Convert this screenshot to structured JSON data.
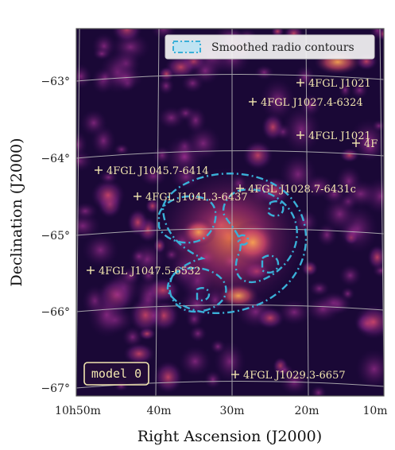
{
  "chart_data": {
    "type": "heatmap",
    "xlabel": "Right Ascension (J2000)",
    "ylabel": "Declination (J2000)",
    "x_ticks": [
      "10h50m",
      "40m",
      "30m",
      "20m",
      "10m"
    ],
    "y_ticks": [
      "−63°",
      "−64°",
      "−65°",
      "−66°",
      "−67°"
    ],
    "colormap": "magma",
    "grid": true,
    "legend": {
      "position": "top-right",
      "entries": [
        "Smoothed radio contours"
      ]
    },
    "contour_color": "#3ab0d8",
    "panel_label": "model 0",
    "sources": [
      "4FGL J1021",
      "4FGL J1027.4-6324",
      "4FGL J1021",
      "4F",
      "4FGL J1045.7-6414",
      "4FGL J1041.3-6437",
      "4FGL J1028.7-6431c",
      "4FGL J1047.5-6532",
      "4FGL J1029.3-6657"
    ]
  }
}
